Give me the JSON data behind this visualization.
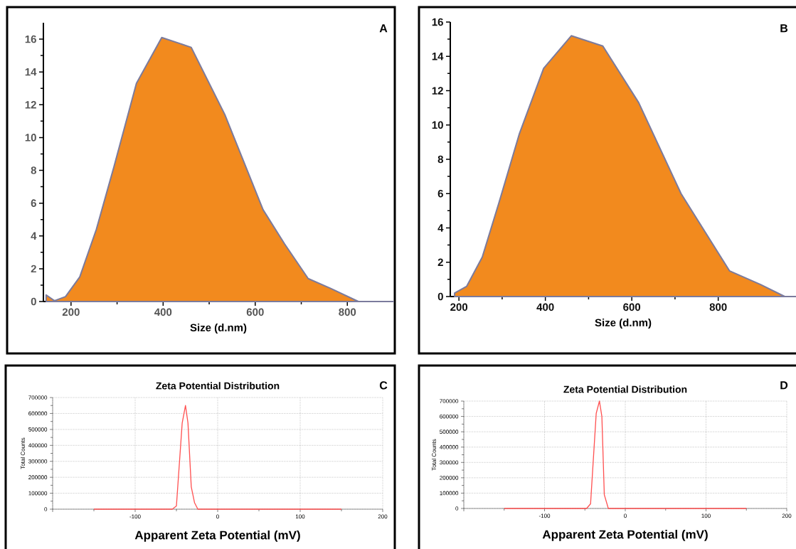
{
  "chart_data": [
    {
      "type": "area",
      "xlabel": "Size (d.nm)",
      "annotations": [
        "A"
      ],
      "xlim": [
        140,
        900
      ],
      "ylim": [
        0,
        17
      ],
      "xticks": [
        200,
        400,
        600,
        800
      ],
      "yticks": [
        0,
        2,
        4,
        6,
        8,
        10,
        12,
        14,
        16
      ],
      "series": [
        {
          "color": "#f28a1e",
          "x": [
            146,
            164,
            188,
            219,
            255,
            293,
            342,
            397,
            461,
            534,
            617,
            664,
            715,
            764,
            824,
            900
          ],
          "values": [
            0.4,
            0.05,
            0.3,
            1.5,
            4.4,
            8.2,
            13.3,
            16.1,
            15.5,
            11.4,
            5.6,
            3.5,
            1.4,
            0.8,
            0,
            0
          ]
        }
      ]
    },
    {
      "type": "area",
      "xlabel": "Size (d.nm)",
      "annotations": [
        "B"
      ],
      "xlim": [
        180,
        980
      ],
      "ylim": [
        0,
        16
      ],
      "xticks": [
        200,
        400,
        600,
        800
      ],
      "yticks": [
        0,
        2,
        4,
        6,
        8,
        10,
        12,
        14,
        16
      ],
      "series": [
        {
          "color": "#f28a1e",
          "x": [
            190,
            218,
            254,
            293,
            340,
            396,
            460,
            533,
            616,
            714,
            826,
            898,
            954,
            980
          ],
          "values": [
            0.2,
            0.6,
            2.3,
            5.5,
            9.5,
            13.3,
            15.2,
            14.6,
            11.3,
            6.0,
            1.5,
            0.7,
            0,
            0
          ]
        }
      ]
    },
    {
      "type": "line",
      "title": "Zeta Potential  Distribution",
      "xlabel": "Apparent Zeta Potential (mV)",
      "ylabel": "Total Counts",
      "annotations": [
        "C"
      ],
      "xlim": [
        -200,
        200
      ],
      "ylim": [
        0,
        700000
      ],
      "xticks": [
        {
          "value": -200,
          "label": null
        },
        -100,
        0,
        100,
        200
      ],
      "yticks": [
        0,
        100000,
        200000,
        300000,
        400000,
        500000,
        600000,
        700000
      ],
      "grid": true,
      "series": [
        {
          "color": "#ff5050",
          "x": [
            -150,
            -55,
            -50,
            -43,
            -39,
            -36,
            -32,
            -28,
            -24,
            150
          ],
          "values": [
            0,
            0,
            20000,
            540000,
            650000,
            540000,
            140000,
            40000,
            0,
            0
          ]
        }
      ]
    },
    {
      "type": "line",
      "title": "Zeta Potential Distribution",
      "xlabel": "Apparent Zeta Potential (mV)",
      "ylabel": "Total Counts",
      "annotations": [
        "D"
      ],
      "xlim": [
        -200,
        200
      ],
      "ylim": [
        0,
        700000
      ],
      "xticks": [
        {
          "value": -200,
          "label": null
        },
        -100,
        0,
        100,
        200
      ],
      "yticks": [
        0,
        100000,
        200000,
        300000,
        400000,
        500000,
        600000,
        700000
      ],
      "grid": true,
      "series": [
        {
          "color": "#ff5050",
          "x": [
            -150,
            -48,
            -43,
            -36,
            -32,
            -29,
            -26,
            -21,
            150
          ],
          "values": [
            0,
            0,
            30000,
            620000,
            700000,
            600000,
            90000,
            0,
            0
          ]
        }
      ]
    }
  ]
}
